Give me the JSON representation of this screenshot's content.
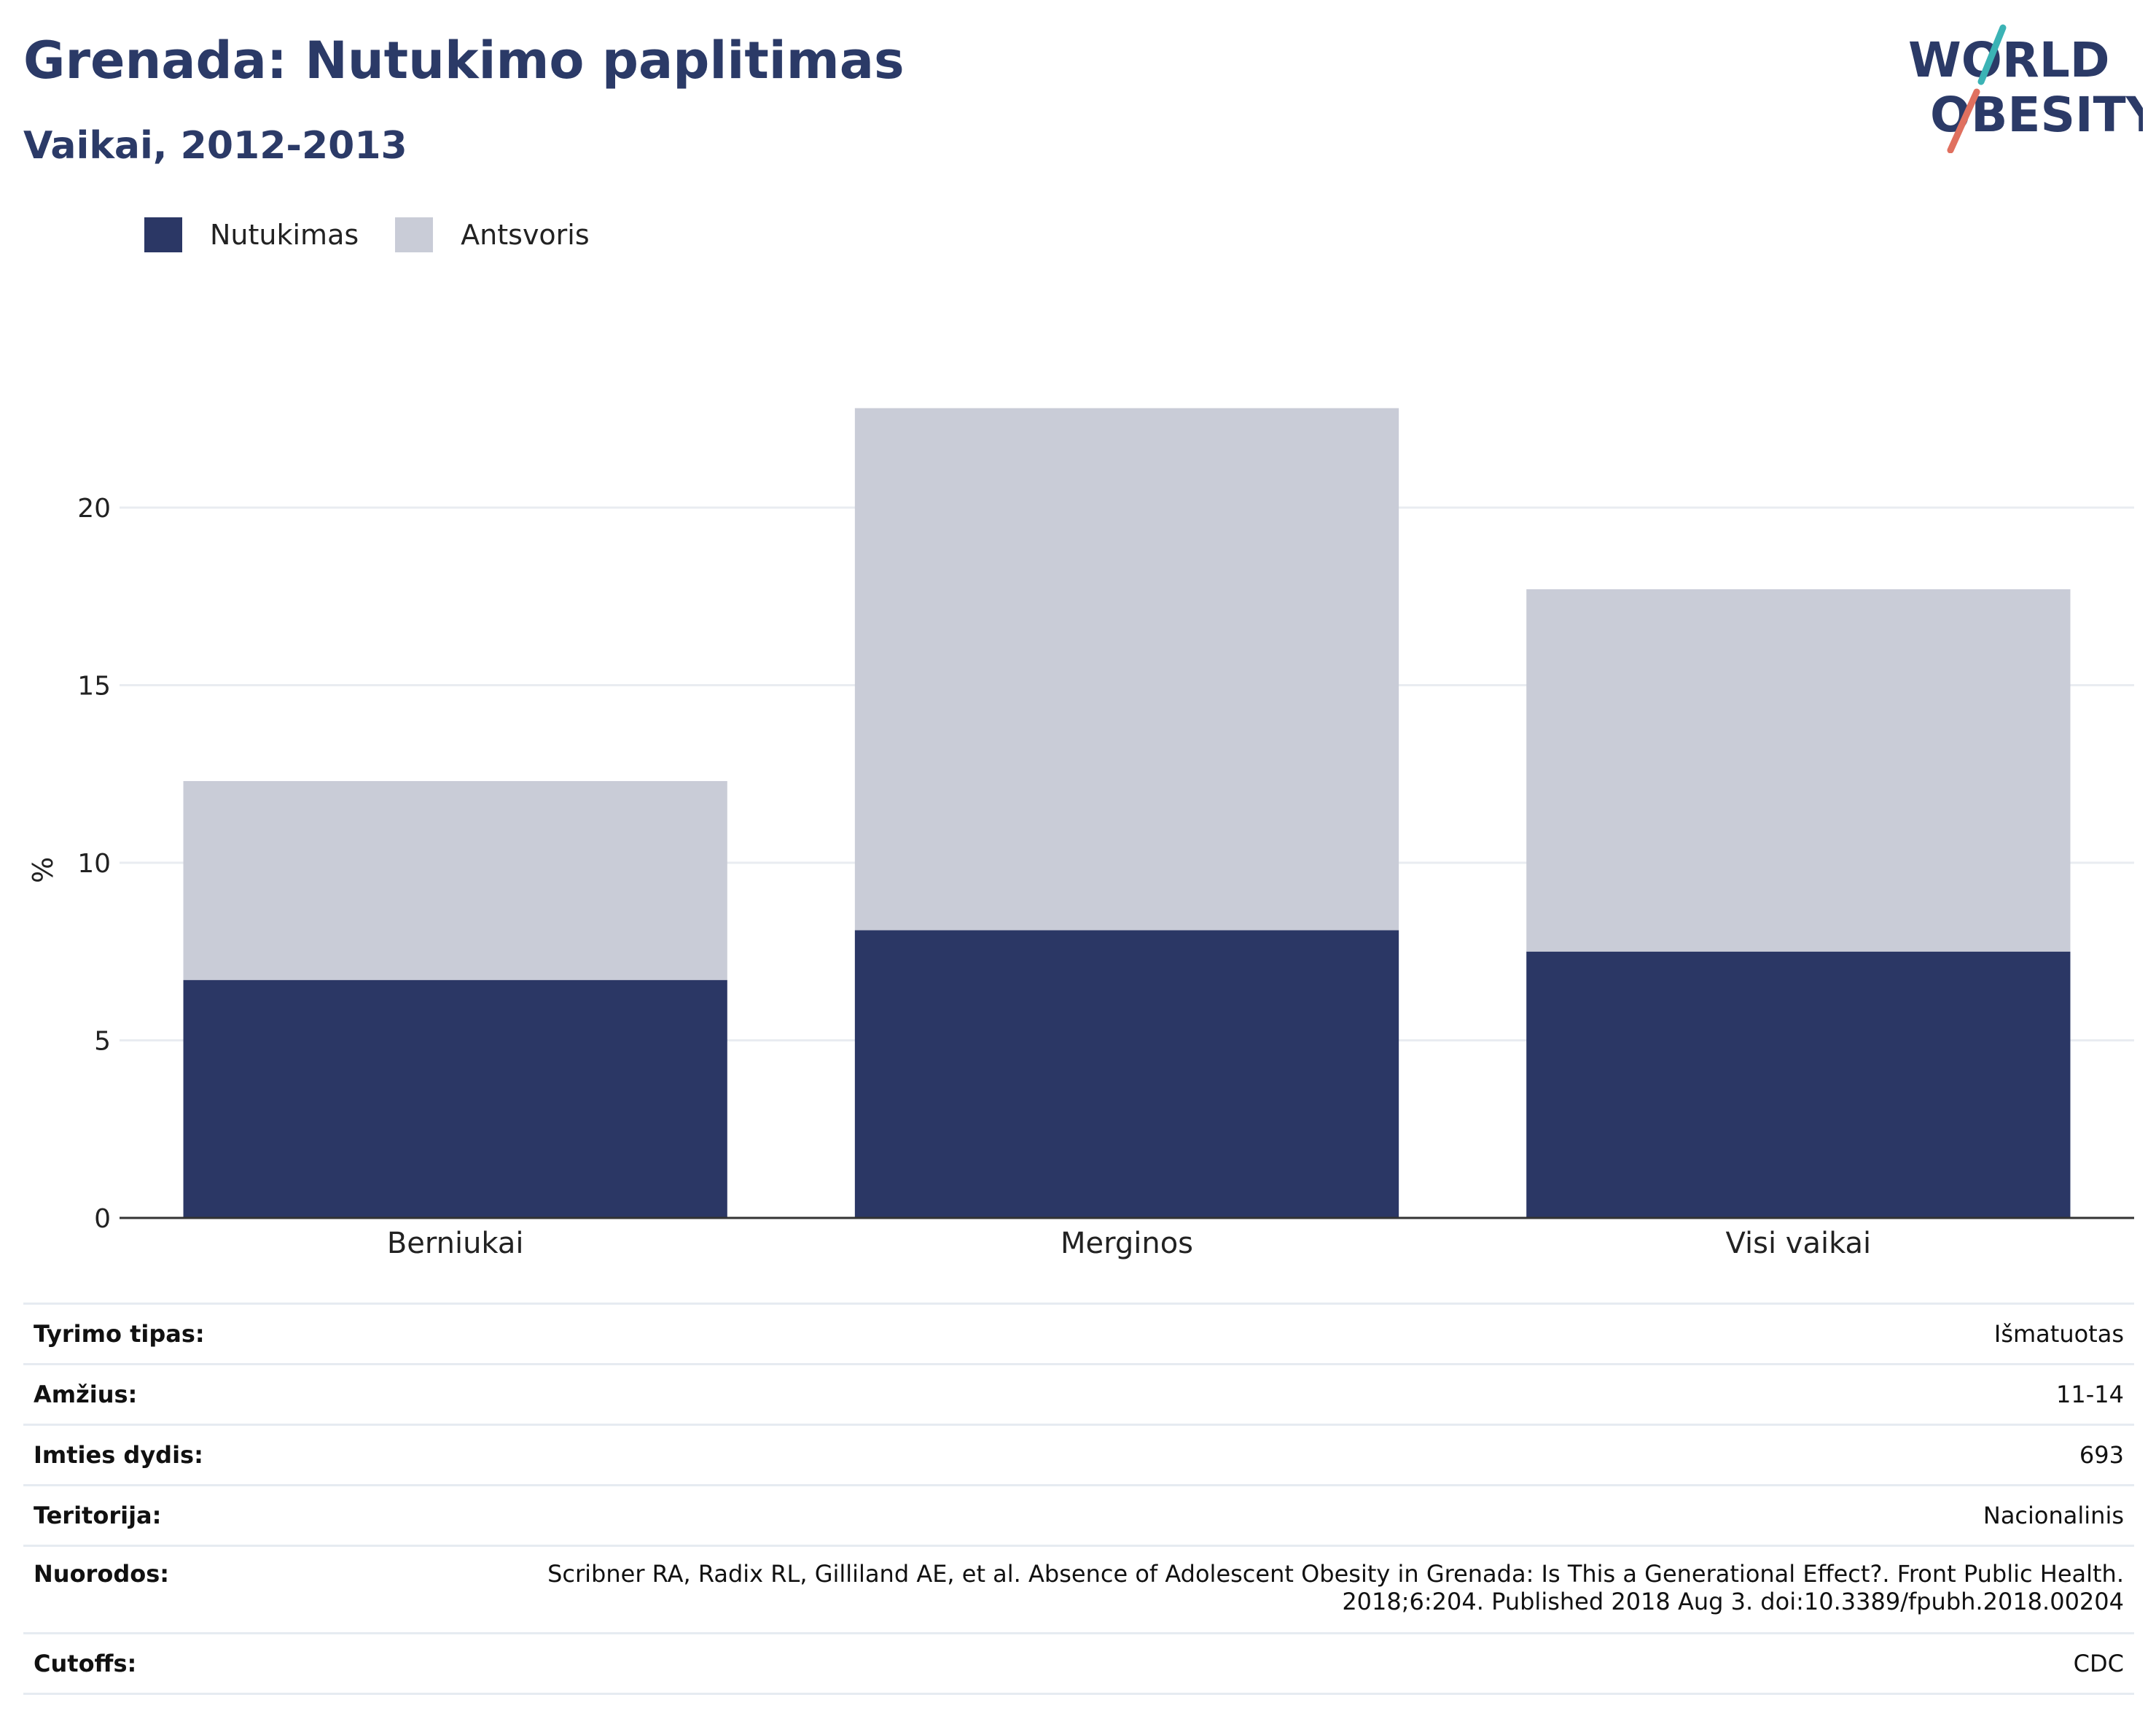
{
  "header": {
    "title": "Grenada: Nutukimo paplitimas",
    "subtitle": "Vaikai, 2012-2013"
  },
  "logo": {
    "line1": "WORLD",
    "line2": "OBESITY"
  },
  "colors": {
    "obesity": "#2b3765",
    "overweight": "#c9ccd7",
    "text": "#2b3a67",
    "accent_teal": "#3bb3b5",
    "accent_red": "#e0705f"
  },
  "legend": [
    {
      "label": "Nutukimas",
      "color": "#2b3765"
    },
    {
      "label": "Antsvoris",
      "color": "#c9ccd7"
    }
  ],
  "chart_data": {
    "type": "bar",
    "stacked": true,
    "categories": [
      "Berniukai",
      "Merginos",
      "Visi vaikai"
    ],
    "series": [
      {
        "name": "Nutukimas",
        "values": [
          6.7,
          8.1,
          7.5
        ]
      },
      {
        "name": "Antsvoris",
        "values": [
          5.6,
          14.7,
          10.2
        ]
      }
    ],
    "ylabel": "%",
    "ylim": [
      0,
      23
    ],
    "yticks": [
      0,
      5,
      10,
      15,
      20
    ],
    "grid": true,
    "legend_position": "top-left"
  },
  "meta": [
    {
      "key": "Tyrimo tipas:",
      "value": "Išmatuotas"
    },
    {
      "key": "Amžius:",
      "value": "11-14"
    },
    {
      "key": "Imties dydis:",
      "value": "693"
    },
    {
      "key": "Teritorija:",
      "value": "Nacionalinis"
    },
    {
      "key": "Nuorodos:",
      "value_lines": [
        "Scribner RA, Radix RL, Gilliland AE, et al. Absence of Adolescent Obesity in Grenada: Is This a Generational Effect?. Front Public Health.",
        "2018;6:204. Published 2018 Aug 3. doi:10.3389/fpubh.2018.00204"
      ]
    },
    {
      "key": "Cutoffs:",
      "value": "CDC"
    }
  ]
}
